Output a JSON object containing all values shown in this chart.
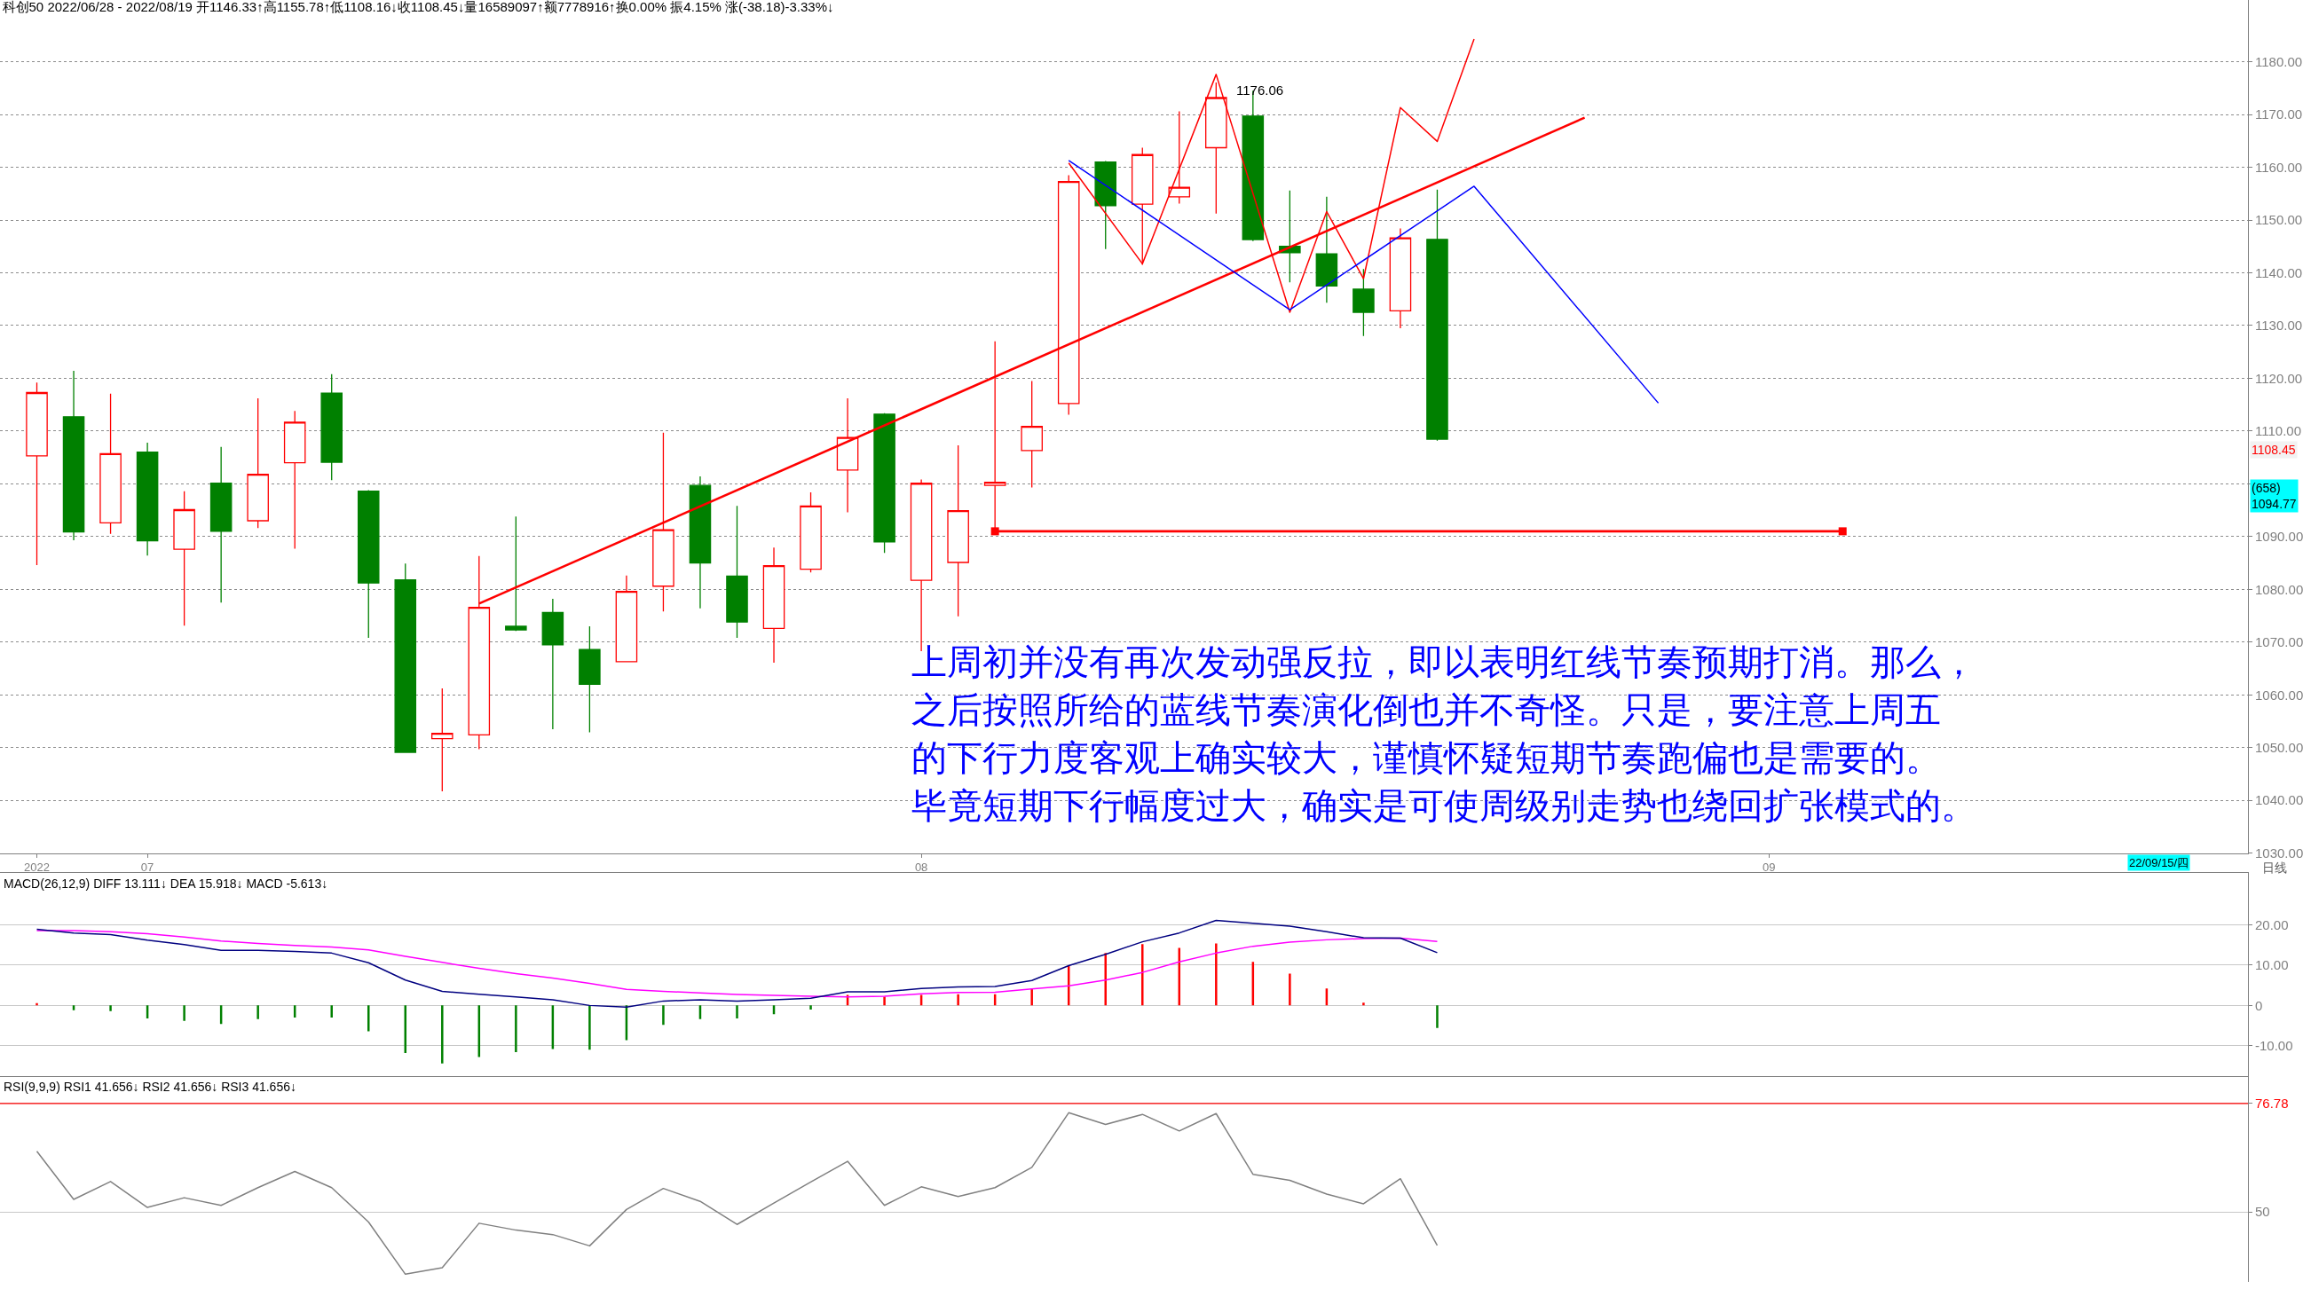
{
  "chart_data": [
    {
      "type": "candlestick",
      "title": "科创50 2022/06/28 - 2022/08/19 开1146.33↑高1155.78↑低1108.16↓收1108.45↓量16589097↑额7778916↑换0.00% 振4.15% 涨(-38.18)-3.33%↓",
      "categories": [
        "2022",
        null,
        null,
        "07",
        null,
        null,
        null,
        null,
        null,
        null,
        null,
        null,
        null,
        null,
        null,
        null,
        null,
        null,
        null,
        null,
        null,
        null,
        null,
        null,
        "08",
        null,
        null,
        null,
        null,
        null,
        null,
        null,
        null,
        null,
        null,
        null,
        null,
        null,
        null,
        null,
        null,
        null,
        null,
        null,
        null,
        null,
        null,
        "09",
        null,
        null,
        null,
        null,
        null,
        null,
        null,
        null,
        null,
        null,
        null,
        null
      ],
      "ohlc": [
        [
          1105.3,
          1119.2,
          1084.6,
          1117.3
        ],
        [
          1112.7,
          1121.4,
          1089.3,
          1090.9
        ],
        [
          1092.6,
          1117.1,
          1090.5,
          1105.7
        ],
        [
          1106.0,
          1107.8,
          1086.4,
          1089.2
        ],
        [
          1087.6,
          1098.6,
          1073.1,
          1095.1
        ],
        [
          1100.1,
          1107.0,
          1077.5,
          1091.0
        ],
        [
          1093.0,
          1116.2,
          1091.6,
          1101.8
        ],
        [
          1104.0,
          1113.8,
          1087.7,
          1111.7
        ],
        [
          1117.2,
          1120.8,
          1100.7,
          1104.1
        ],
        [
          1098.6,
          1098.8,
          1070.8,
          1081.2
        ],
        [
          1081.8,
          1084.9,
          1049.0,
          1049.1
        ],
        [
          1051.7,
          1061.2,
          1041.7,
          1052.7
        ],
        [
          1052.4,
          1086.3,
          1049.7,
          1076.6
        ],
        [
          1073.0,
          1093.8,
          1072.1,
          1072.3
        ],
        [
          1075.6,
          1078.2,
          1053.5,
          1069.5
        ],
        [
          1068.6,
          1073.0,
          1052.9,
          1062.0
        ],
        [
          1066.3,
          1082.6,
          1066.2,
          1079.6
        ],
        [
          1080.6,
          1109.7,
          1075.8,
          1091.3
        ],
        [
          1099.7,
          1101.4,
          1076.4,
          1085.0
        ],
        [
          1082.5,
          1095.8,
          1070.8,
          1073.8
        ],
        [
          1072.6,
          1087.9,
          1066.1,
          1084.5
        ],
        [
          1083.8,
          1098.4,
          1083.2,
          1095.8
        ],
        [
          1102.6,
          1116.2,
          1094.6,
          1108.8
        ],
        [
          1113.2,
          1113.4,
          1086.9,
          1089.0
        ],
        [
          1081.7,
          1100.8,
          1068.3,
          1100.1
        ],
        [
          1085.1,
          1107.3,
          1074.9,
          1094.9
        ],
        [
          1099.7,
          1127.0,
          1091.0,
          1100.3
        ],
        [
          1106.3,
          1119.5,
          1099.3,
          1110.9
        ],
        [
          1115.2,
          1158.5,
          1113.1,
          1157.3
        ],
        [
          1161.0,
          1161.2,
          1144.5,
          1152.7
        ],
        [
          1153.0,
          1163.7,
          1141.5,
          1162.4
        ],
        [
          1154.4,
          1170.6,
          1153.1,
          1156.2
        ],
        [
          1163.7,
          1176.06,
          1151.2,
          1173.2
        ],
        [
          1169.7,
          1174.5,
          1146.0,
          1146.3
        ],
        [
          1145.0,
          1155.6,
          1138.2,
          1143.8
        ],
        [
          1143.6,
          1154.4,
          1134.3,
          1137.5
        ],
        [
          1136.9,
          1140.7,
          1128.0,
          1132.5
        ],
        [
          1132.8,
          1148.4,
          1129.5,
          1146.6
        ],
        [
          1146.33,
          1155.78,
          1108.16,
          1108.45
        ],
        null,
        null,
        null,
        null,
        null,
        null,
        null,
        null,
        null,
        null,
        null,
        null,
        null,
        null,
        null,
        null,
        null,
        null,
        null,
        null,
        null
      ],
      "colors": [
        "#ff0000",
        "#008000",
        "#ff0000",
        "#008000",
        "#ff0000",
        "#008000",
        "#ff0000",
        "#ff0000",
        "#008000",
        "#008000",
        "#008000",
        "#ff0000",
        "#ff0000",
        "#008000",
        "#008000",
        "#008000",
        "#ff0000",
        "#ff0000",
        "#008000",
        "#008000",
        "#ff0000",
        "#ff0000",
        "#ff0000",
        "#008000",
        "#ff0000",
        "#ff0000",
        "#ff0000",
        "#ff0000",
        "#ff0000",
        "#008000",
        "#ff0000",
        "#ff0000",
        "#ff0000",
        "#008000",
        "#008000",
        "#008000",
        "#008000",
        "#ff0000",
        "#008000",
        null,
        null,
        null,
        null,
        null,
        null,
        null,
        null,
        null,
        null,
        null,
        null,
        null,
        null,
        null,
        null,
        null,
        null,
        null,
        null,
        null
      ],
      "series": [
        {
          "type": "line",
          "color": "#ff0000",
          "marker": "none",
          "values": [
            null,
            null,
            null,
            null,
            null,
            null,
            null,
            null,
            null,
            null,
            null,
            null,
            1077.3,
            null,
            null,
            null,
            null,
            null,
            null,
            null,
            null,
            null,
            null,
            null,
            null,
            null,
            null,
            null,
            null,
            null,
            null,
            null,
            null,
            null,
            null,
            null,
            null,
            null,
            null,
            null,
            null,
            null,
            1169.4,
            null,
            null,
            null,
            null,
            null,
            null,
            null,
            null,
            null,
            null,
            null,
            null,
            null,
            null,
            null,
            null,
            null
          ]
        },
        {
          "type": "line",
          "color": "#ff0000",
          "marker": "square",
          "values": [
            null,
            null,
            null,
            null,
            null,
            null,
            null,
            null,
            null,
            null,
            null,
            null,
            null,
            null,
            null,
            null,
            null,
            null,
            null,
            null,
            null,
            null,
            null,
            null,
            null,
            null,
            1091.0,
            null,
            null,
            null,
            null,
            null,
            null,
            null,
            null,
            null,
            null,
            null,
            null,
            null,
            null,
            null,
            null,
            null,
            null,
            null,
            null,
            null,
            null,
            1091.0,
            null,
            null,
            null,
            null,
            null,
            null,
            null,
            null,
            null,
            null
          ]
        },
        {
          "type": "line",
          "color": "#ff0000",
          "marker": "none",
          "values": [
            null,
            null,
            null,
            null,
            null,
            null,
            null,
            null,
            null,
            null,
            null,
            null,
            null,
            null,
            null,
            null,
            null,
            null,
            null,
            null,
            null,
            null,
            null,
            null,
            null,
            null,
            null,
            null,
            1160.8,
            null,
            1141.7,
            null,
            1177.6,
            null,
            1132.5,
            1151.6,
            1138.9,
            1171.3,
            1164.9,
            1184.3,
            null,
            null,
            null,
            null,
            null,
            null,
            null,
            null,
            null,
            null,
            null,
            null,
            null,
            null,
            null,
            null,
            null,
            null,
            null,
            null
          ]
        },
        {
          "type": "line",
          "color": "#0000ff",
          "marker": "none",
          "values": [
            null,
            null,
            null,
            null,
            null,
            null,
            null,
            null,
            null,
            null,
            null,
            null,
            null,
            null,
            null,
            null,
            null,
            null,
            null,
            null,
            null,
            null,
            null,
            null,
            null,
            null,
            null,
            null,
            1161.3,
            null,
            null,
            null,
            null,
            null,
            1133.0,
            null,
            null,
            null,
            null,
            1156.4,
            null,
            null,
            null,
            null,
            1115.3,
            null,
            null,
            null,
            null,
            null,
            null,
            null,
            null,
            null,
            null,
            null,
            null,
            null,
            null,
            null
          ]
        }
      ],
      "ylim": [
        1030,
        1191.7
      ],
      "yticks": [
        {
          "value": 1030,
          "label": "1030.00"
        },
        {
          "value": 1040,
          "label": "1040.00"
        },
        {
          "value": 1050,
          "label": "1050.00"
        },
        {
          "value": 1060,
          "label": "1060.00"
        },
        {
          "value": 1070,
          "label": "1070.00"
        },
        {
          "value": 1080,
          "label": "1080.00"
        },
        {
          "value": 1090,
          "label": "1090.00"
        },
        {
          "value": 1100,
          "label": null
        },
        {
          "value": 1110,
          "label": "1110.00"
        },
        {
          "value": 1120,
          "label": "1120.00"
        },
        {
          "value": 1130,
          "label": "1130.00"
        },
        {
          "value": 1140,
          "label": "1140.00"
        },
        {
          "value": 1150,
          "label": "1150.00"
        },
        {
          "value": 1160,
          "label": "1160.00"
        },
        {
          "value": 1170,
          "label": "1170.00"
        },
        {
          "value": 1180,
          "label": "1180.00"
        }
      ],
      "grid": "y",
      "annotations": [
        "上周初并没有再次发动强反拉，即以表明红线节奏预期打消。那么，",
        "之后按照所给的蓝线节奏演化倒也并不奇怪。只是，要注意上周五",
        "的下行力度客观上确实较大，谨慎怀疑短期节奏跑偏也是需要的。",
        "毕竟短期下行幅度过大，确实是可使周级别走势也绕回扩张模式的。",
        "日线",
        "1108.45",
        "(658)\n1094.77",
        "22/09/15/四",
        "1176.06"
      ]
    },
    {
      "type": "bar",
      "title": "MACD(26,12,9) DIFF 13.111↓ DEA 15.918↓ MACD -5.613↓",
      "categories": [
        "2022",
        null,
        null,
        "07",
        null,
        null,
        null,
        null,
        null,
        null,
        null,
        null,
        null,
        null,
        null,
        null,
        null,
        null,
        null,
        null,
        null,
        null,
        null,
        null,
        "08",
        null,
        null,
        null,
        null,
        null,
        null,
        null,
        null,
        null,
        null,
        null,
        null,
        null,
        null,
        null,
        null,
        null,
        null,
        null,
        null,
        null,
        null,
        "09",
        null,
        null,
        null,
        null,
        null,
        null,
        null,
        null,
        null,
        null,
        null,
        null
      ],
      "series": [
        {
          "type": "bar",
          "colors": [
            "#ff0000",
            "#008000",
            "#008000",
            "#008000",
            "#008000",
            "#008000",
            "#008000",
            "#008000",
            "#008000",
            "#008000",
            "#008000",
            "#008000",
            "#008000",
            "#008000",
            "#008000",
            "#008000",
            "#008000",
            "#008000",
            "#008000",
            "#008000",
            "#008000",
            "#008000",
            "#ff0000",
            "#ff0000",
            "#ff0000",
            "#ff0000",
            "#ff0000",
            "#ff0000",
            "#ff0000",
            "#ff0000",
            "#ff0000",
            "#ff0000",
            "#ff0000",
            "#ff0000",
            "#ff0000",
            "#ff0000",
            "#ff0000",
            null,
            "#008000",
            null,
            null,
            null,
            null,
            null,
            null,
            null,
            null,
            null,
            null,
            null,
            null,
            null,
            null,
            null,
            null,
            null,
            null,
            null,
            null,
            null
          ],
          "values": [
            0.6,
            -1.2,
            -1.4,
            -3.2,
            -3.8,
            -4.6,
            -3.4,
            -3.0,
            -3.0,
            -6.4,
            -11.8,
            -14.4,
            -12.8,
            -11.6,
            -10.8,
            -11.0,
            -8.6,
            -4.8,
            -3.4,
            -3.2,
            -2.2,
            -1.0,
            2.6,
            2.2,
            2.6,
            2.8,
            2.8,
            4.2,
            10.0,
            13.0,
            15.2,
            14.3,
            15.4,
            10.8,
            7.9,
            4.2,
            0.7,
            null,
            -5.6,
            null,
            null,
            null,
            null,
            null,
            null,
            null,
            null,
            null,
            null,
            null,
            null,
            null,
            null,
            null,
            null,
            null,
            null,
            null,
            null,
            null
          ]
        },
        {
          "type": "line",
          "color": "#ff00ff",
          "values": [
            18.6,
            18.6,
            18.3,
            17.8,
            17.0,
            16.0,
            15.4,
            14.9,
            14.5,
            13.8,
            12.2,
            10.7,
            9.2,
            7.9,
            6.8,
            5.5,
            4.0,
            3.5,
            3.1,
            2.7,
            2.5,
            2.3,
            2.1,
            2.3,
            2.9,
            3.2,
            3.3,
            4.1,
            4.9,
            6.3,
            8.2,
            10.8,
            13.0,
            14.7,
            15.7,
            16.3,
            16.6,
            16.7,
            15.9,
            null,
            null,
            null,
            null,
            null,
            null,
            null,
            null,
            null,
            null,
            null,
            null,
            null,
            null,
            null,
            null,
            null,
            null,
            null,
            null,
            null
          ]
        },
        {
          "type": "line",
          "color": "#000080",
          "values": [
            18.9,
            18.0,
            17.6,
            16.2,
            15.1,
            13.7,
            13.7,
            13.4,
            13.0,
            10.6,
            6.3,
            3.5,
            2.8,
            2.1,
            1.4,
            0.0,
            -0.4,
            1.1,
            1.4,
            1.1,
            1.4,
            1.8,
            3.4,
            3.4,
            4.2,
            4.6,
            4.7,
            6.2,
            9.9,
            12.7,
            15.8,
            18.0,
            21.1,
            20.4,
            19.7,
            18.3,
            16.8,
            16.7,
            13.1,
            null,
            null,
            null,
            null,
            null,
            null,
            null,
            null,
            null,
            null,
            null,
            null,
            null,
            null,
            null,
            null,
            null,
            null,
            null,
            null,
            null
          ]
        }
      ],
      "ylim": [
        -17.6,
        33.0
      ],
      "yticks": [
        {
          "value": -10,
          "label": "-10.00"
        },
        0,
        {
          "value": 10,
          "label": "10.00"
        },
        {
          "value": 20,
          "label": "20.00"
        }
      ],
      "grid": "y",
      "tick_labels": "y"
    },
    {
      "type": "line",
      "title": "RSI(9,9,9) RSI1 41.656↓ RSI2 41.656↓ RSI3 41.656↓",
      "color": "#808080",
      "marker": "none",
      "categories": [
        "2022",
        null,
        null,
        "07",
        null,
        null,
        null,
        null,
        null,
        null,
        null,
        null,
        null,
        null,
        null,
        null,
        null,
        null,
        null,
        null,
        null,
        null,
        null,
        null,
        "08",
        null,
        null,
        null,
        null,
        null,
        null,
        null,
        null,
        null,
        null,
        null,
        null,
        null,
        null,
        null,
        null,
        null,
        null,
        null,
        null,
        null,
        null,
        "09",
        null,
        null,
        null,
        null,
        null,
        null,
        null,
        null,
        null,
        null,
        null,
        null
      ],
      "values": [
        65.0,
        53.1,
        57.5,
        51.1,
        53.5,
        51.6,
        56.0,
        60.0,
        56.0,
        47.5,
        34.6,
        36.2,
        47.2,
        45.5,
        44.4,
        41.6,
        50.6,
        55.8,
        52.6,
        46.9,
        52.2,
        57.4,
        62.5,
        51.6,
        56.2,
        53.8,
        56.0,
        61.0,
        74.5,
        71.6,
        74.1,
        70.0,
        74.3,
        59.3,
        57.8,
        54.4,
        52.0,
        58.2,
        41.7,
        null,
        null,
        null,
        null,
        null,
        null,
        null,
        null,
        null,
        null,
        null,
        null,
        null,
        null,
        null,
        null,
        null,
        null,
        null,
        null,
        null
      ],
      "ylim": [
        32.7,
        83.5
      ],
      "yticks": [
        50,
        76.78
      ],
      "ref_lines": [
        {
          "axis": "y",
          "value": 76.78,
          "color": "#ff0000"
        }
      ],
      "grid": "y",
      "tick_labels": "y"
    }
  ]
}
